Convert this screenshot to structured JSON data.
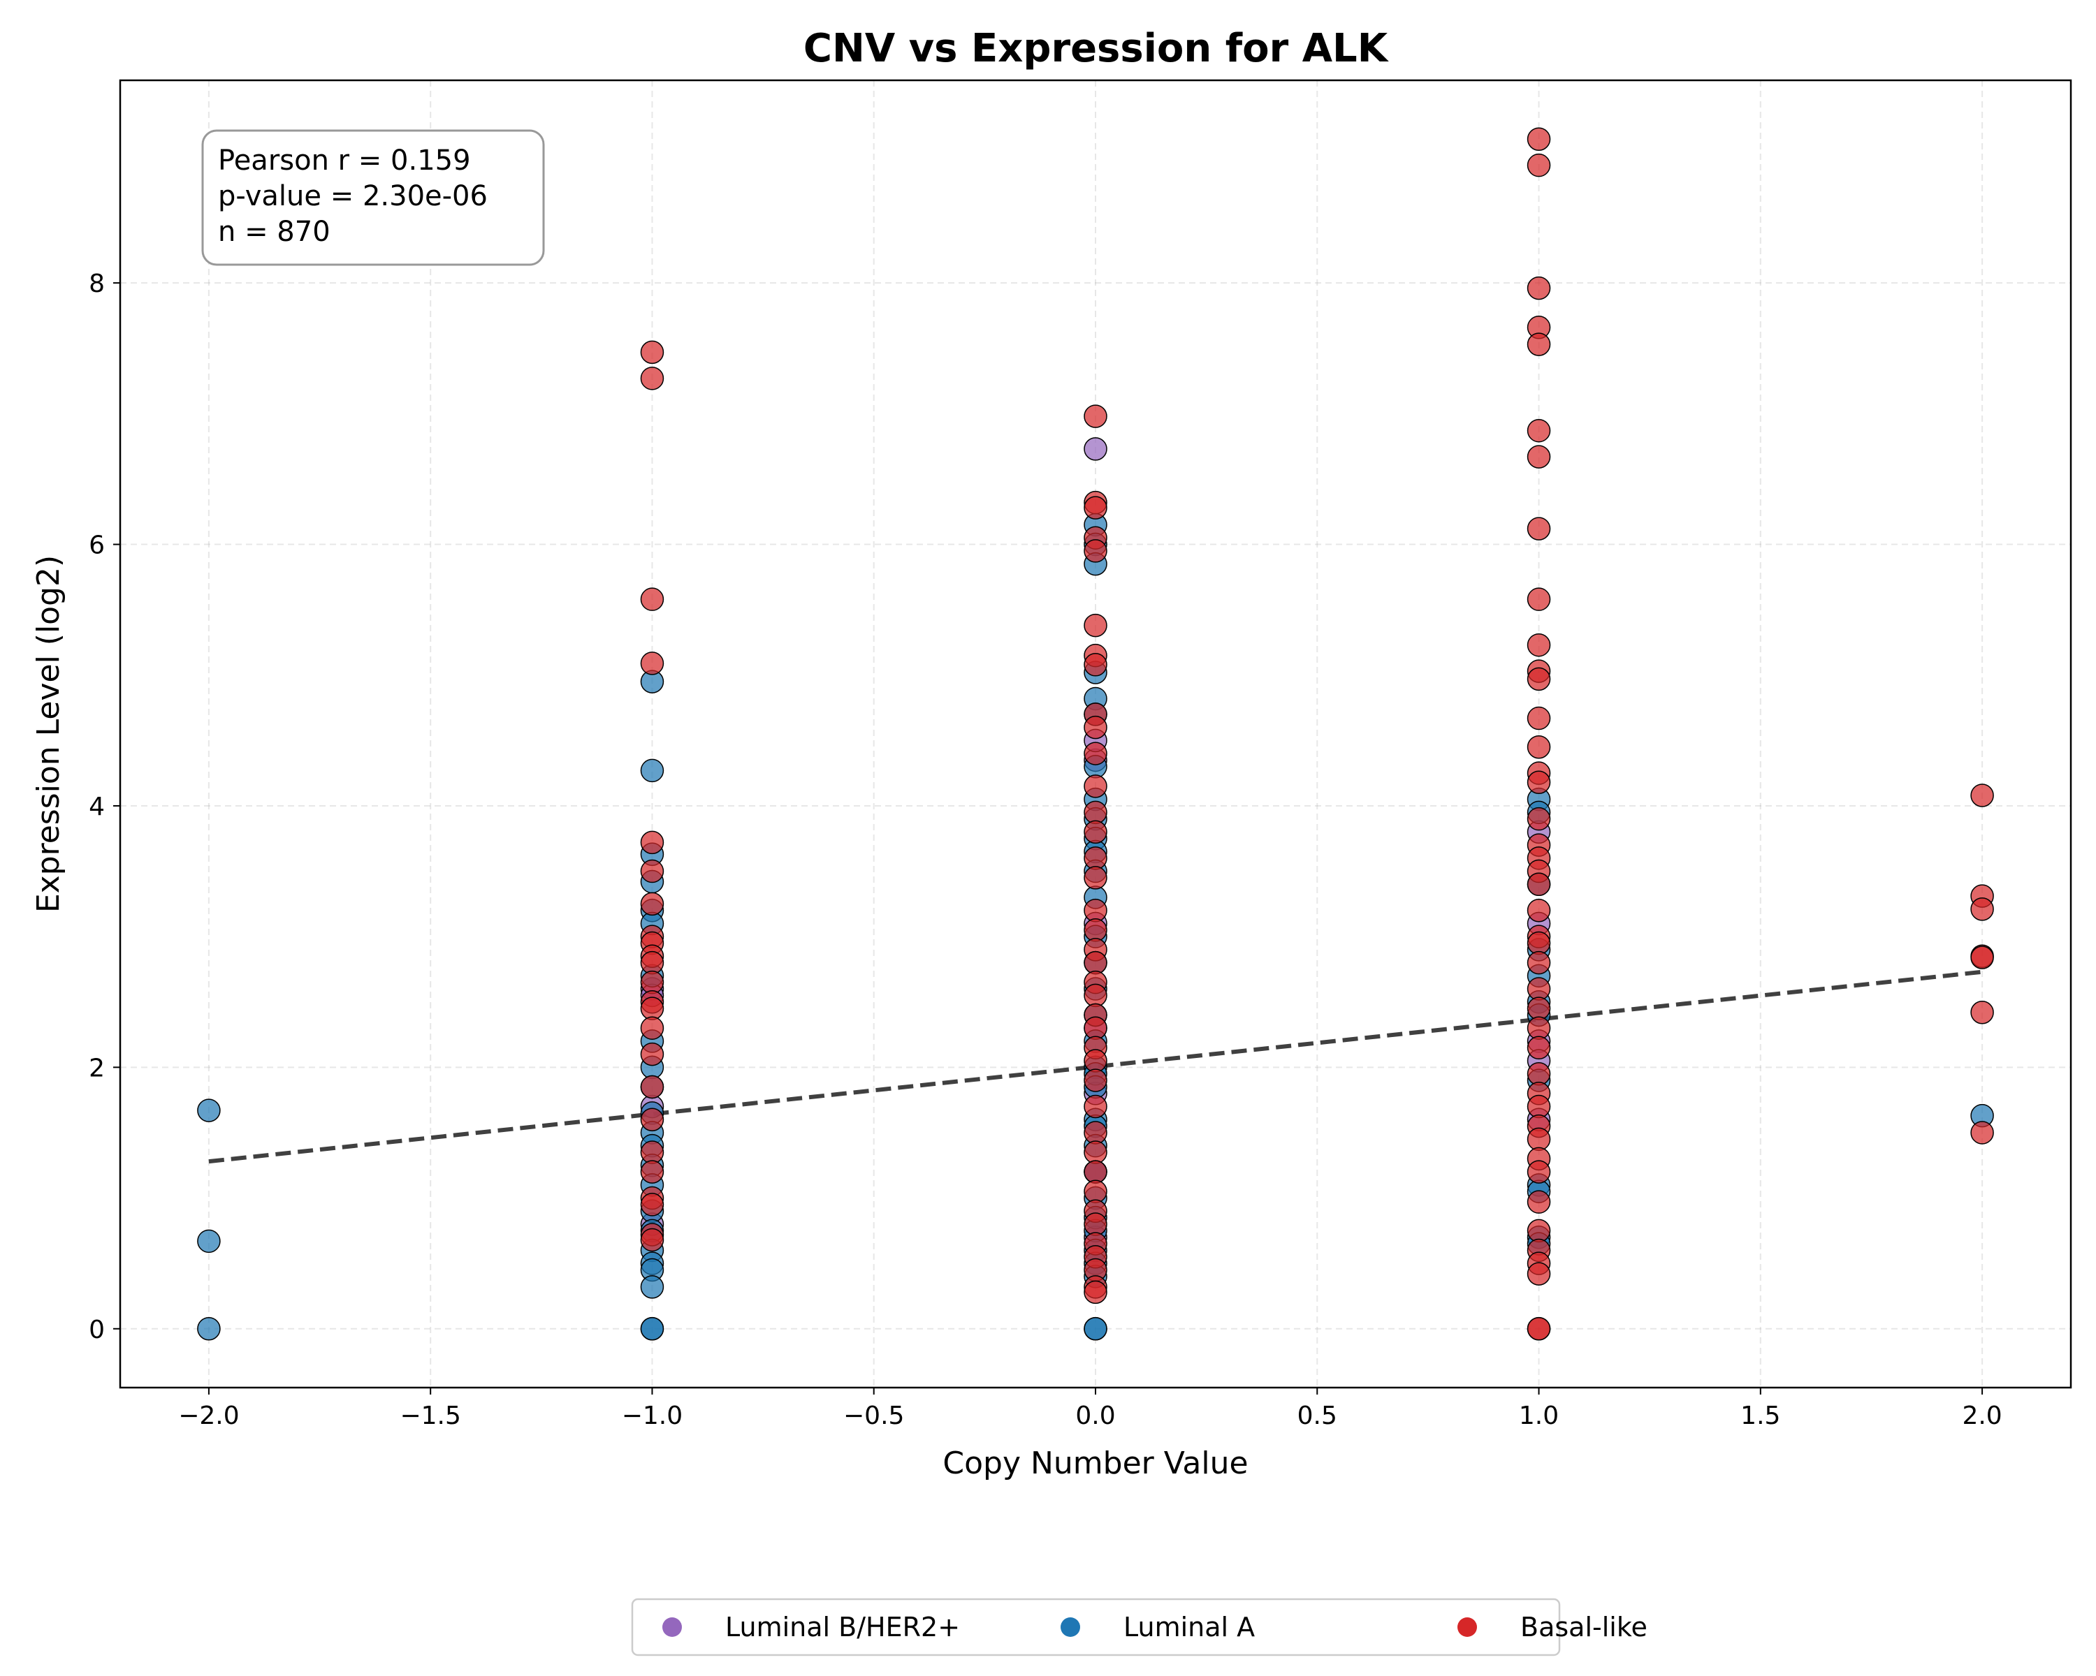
{
  "chart_data": {
    "type": "scatter",
    "title": "CNV vs Expression for ALK",
    "xlabel": "Copy Number Value",
    "ylabel": "Expression Level (log2)",
    "xlim": [
      -2.2,
      2.2
    ],
    "ylim": [
      -0.45,
      9.55
    ],
    "xticks": [
      -2.0,
      -1.5,
      -1.0,
      -0.5,
      0.0,
      0.5,
      1.0,
      1.5,
      2.0
    ],
    "xtick_labels": [
      "−2.0",
      "−1.5",
      "−1.0",
      "−0.5",
      "0.0",
      "0.5",
      "1.0",
      "1.5",
      "2.0"
    ],
    "yticks": [
      0,
      2,
      4,
      6,
      8
    ],
    "ytick_labels": [
      "0",
      "2",
      "4",
      "6",
      "8"
    ],
    "grid": true,
    "legend_position": "bottom-center",
    "stats_text": [
      "Pearson r = 0.159",
      "p-value = 2.30e-06",
      "n = 870"
    ],
    "regression_line": {
      "x": [
        -2.0,
        2.0
      ],
      "y": [
        1.28,
        2.73
      ]
    },
    "series": [
      {
        "name": "Luminal B/HER2+",
        "color": "#9467bd",
        "points": [
          [
            0,
            6.73
          ],
          [
            0,
            4.35
          ],
          [
            0,
            4.5
          ],
          [
            0,
            3.1
          ],
          [
            0,
            2.3
          ],
          [
            0,
            1.8
          ],
          [
            0,
            1.2
          ],
          [
            0,
            0.7
          ],
          [
            -1,
            2.6
          ],
          [
            -1,
            2.55
          ],
          [
            -1,
            1.7
          ],
          [
            -1,
            0.8
          ],
          [
            1,
            3.8
          ],
          [
            1,
            3.1
          ],
          [
            1,
            2.2
          ],
          [
            1,
            2.05
          ],
          [
            1,
            1.6
          ]
        ]
      },
      {
        "name": "Luminal A",
        "color": "#1f77b4",
        "points": [
          [
            -2,
            1.67
          ],
          [
            -2,
            0.67
          ],
          [
            -2,
            0.0
          ],
          [
            -1,
            4.95
          ],
          [
            -1,
            4.27
          ],
          [
            -1,
            3.63
          ],
          [
            -1,
            3.42
          ],
          [
            -1,
            3.2
          ],
          [
            -1,
            3.1
          ],
          [
            -1,
            2.7
          ],
          [
            -1,
            2.2
          ],
          [
            -1,
            2.0
          ],
          [
            -1,
            1.85
          ],
          [
            -1,
            1.65
          ],
          [
            -1,
            1.5
          ],
          [
            -1,
            1.4
          ],
          [
            -1,
            1.25
          ],
          [
            -1,
            1.1
          ],
          [
            -1,
            0.9
          ],
          [
            -1,
            0.75
          ],
          [
            -1,
            0.6
          ],
          [
            -1,
            0.5
          ],
          [
            -1,
            0.45
          ],
          [
            -1,
            0.32
          ],
          [
            -1,
            0.0
          ],
          [
            -1,
            0.0
          ],
          [
            0,
            6.15
          ],
          [
            0,
            6.0
          ],
          [
            0,
            5.85
          ],
          [
            0,
            5.02
          ],
          [
            0,
            4.82
          ],
          [
            0,
            4.7
          ],
          [
            0,
            4.3
          ],
          [
            0,
            4.05
          ],
          [
            0,
            3.9
          ],
          [
            0,
            3.75
          ],
          [
            0,
            3.65
          ],
          [
            0,
            3.5
          ],
          [
            0,
            3.3
          ],
          [
            0,
            3.0
          ],
          [
            0,
            2.8
          ],
          [
            0,
            2.6
          ],
          [
            0,
            2.4
          ],
          [
            0,
            2.2
          ],
          [
            0,
            2.0
          ],
          [
            0,
            1.95
          ],
          [
            0,
            1.85
          ],
          [
            0,
            1.6
          ],
          [
            0,
            1.55
          ],
          [
            0,
            1.4
          ],
          [
            0,
            1.2
          ],
          [
            0,
            1.0
          ],
          [
            0,
            0.85
          ],
          [
            0,
            0.75
          ],
          [
            0,
            0.6
          ],
          [
            0,
            0.5
          ],
          [
            0,
            0.4
          ],
          [
            0,
            0.0
          ],
          [
            0,
            0.0
          ],
          [
            1,
            4.05
          ],
          [
            1,
            3.95
          ],
          [
            1,
            3.4
          ],
          [
            1,
            2.9
          ],
          [
            1,
            2.7
          ],
          [
            1,
            2.5
          ],
          [
            1,
            2.4
          ],
          [
            1,
            1.9
          ],
          [
            1,
            1.1
          ],
          [
            1,
            1.05
          ],
          [
            1,
            0.7
          ],
          [
            1,
            0.65
          ],
          [
            2,
            1.63
          ]
        ]
      },
      {
        "name": "Basal-like",
        "color": "#d62728",
        "points": [
          [
            -1,
            7.47
          ],
          [
            -1,
            7.27
          ],
          [
            -1,
            5.58
          ],
          [
            -1,
            5.09
          ],
          [
            -1,
            3.72
          ],
          [
            -1,
            3.5
          ],
          [
            -1,
            3.25
          ],
          [
            -1,
            3.0
          ],
          [
            -1,
            2.95
          ],
          [
            -1,
            2.85
          ],
          [
            -1,
            2.8
          ],
          [
            -1,
            2.65
          ],
          [
            -1,
            2.5
          ],
          [
            -1,
            2.45
          ],
          [
            -1,
            2.3
          ],
          [
            -1,
            2.1
          ],
          [
            -1,
            1.85
          ],
          [
            -1,
            1.6
          ],
          [
            -1,
            1.35
          ],
          [
            -1,
            1.2
          ],
          [
            -1,
            1.0
          ],
          [
            -1,
            0.95
          ],
          [
            -1,
            0.72
          ],
          [
            -1,
            0.68
          ],
          [
            0,
            6.98
          ],
          [
            0,
            6.32
          ],
          [
            0,
            6.28
          ],
          [
            0,
            6.05
          ],
          [
            0,
            5.95
          ],
          [
            0,
            5.38
          ],
          [
            0,
            5.15
          ],
          [
            0,
            5.08
          ],
          [
            0,
            4.7
          ],
          [
            0,
            4.6
          ],
          [
            0,
            4.4
          ],
          [
            0,
            4.15
          ],
          [
            0,
            3.95
          ],
          [
            0,
            3.8
          ],
          [
            0,
            3.6
          ],
          [
            0,
            3.45
          ],
          [
            0,
            3.2
          ],
          [
            0,
            3.05
          ],
          [
            0,
            2.9
          ],
          [
            0,
            2.8
          ],
          [
            0,
            2.65
          ],
          [
            0,
            2.55
          ],
          [
            0,
            2.4
          ],
          [
            0,
            2.3
          ],
          [
            0,
            2.15
          ],
          [
            0,
            2.05
          ],
          [
            0,
            1.9
          ],
          [
            0,
            1.7
          ],
          [
            0,
            1.5
          ],
          [
            0,
            1.35
          ],
          [
            0,
            1.2
          ],
          [
            0,
            1.05
          ],
          [
            0,
            0.9
          ],
          [
            0,
            0.8
          ],
          [
            0,
            0.65
          ],
          [
            0,
            0.55
          ],
          [
            0,
            0.45
          ],
          [
            0,
            0.32
          ],
          [
            0,
            0.28
          ],
          [
            1,
            9.1
          ],
          [
            1,
            8.9
          ],
          [
            1,
            7.96
          ],
          [
            1,
            7.66
          ],
          [
            1,
            7.53
          ],
          [
            1,
            6.87
          ],
          [
            1,
            6.67
          ],
          [
            1,
            6.12
          ],
          [
            1,
            5.58
          ],
          [
            1,
            5.23
          ],
          [
            1,
            5.03
          ],
          [
            1,
            4.97
          ],
          [
            1,
            4.67
          ],
          [
            1,
            4.45
          ],
          [
            1,
            4.25
          ],
          [
            1,
            4.18
          ],
          [
            1,
            3.9
          ],
          [
            1,
            3.7
          ],
          [
            1,
            3.6
          ],
          [
            1,
            3.5
          ],
          [
            1,
            3.4
          ],
          [
            1,
            3.2
          ],
          [
            1,
            3.0
          ],
          [
            1,
            2.95
          ],
          [
            1,
            2.8
          ],
          [
            1,
            2.6
          ],
          [
            1,
            2.45
          ],
          [
            1,
            2.3
          ],
          [
            1,
            2.15
          ],
          [
            1,
            1.95
          ],
          [
            1,
            1.8
          ],
          [
            1,
            1.7
          ],
          [
            1,
            1.55
          ],
          [
            1,
            1.45
          ],
          [
            1,
            1.3
          ],
          [
            1,
            1.2
          ],
          [
            1,
            0.97
          ],
          [
            1,
            0.75
          ],
          [
            1,
            0.6
          ],
          [
            1,
            0.5
          ],
          [
            1,
            0.42
          ],
          [
            1,
            0.0
          ],
          [
            1,
            0.0
          ],
          [
            2,
            4.08
          ],
          [
            2,
            3.31
          ],
          [
            2,
            3.21
          ],
          [
            2,
            2.85
          ],
          [
            2,
            2.84
          ],
          [
            2,
            2.42
          ],
          [
            2,
            1.5
          ]
        ]
      }
    ]
  }
}
